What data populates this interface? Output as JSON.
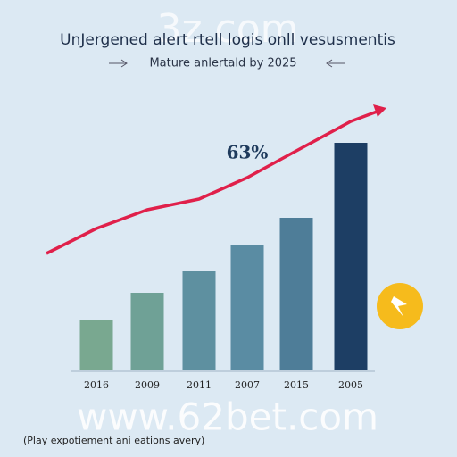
{
  "chart_data": {
    "type": "bar",
    "title": "UnJergened alert rtell logis onll vesusmentis",
    "subtitle": "Mature anlertald by 2025",
    "annotation": "63%",
    "watermark_top": "3z.com",
    "watermark_bottom": "www.62bet.com",
    "footnote": "(Play expotiement ani eations avery)",
    "categories": [
      "2016",
      "2009",
      "2011",
      "2007",
      "2015",
      "2005"
    ],
    "values": [
      19,
      29,
      37,
      47,
      57,
      85
    ],
    "colors": [
      "#79a890",
      "#6fa196",
      "#5e90a0",
      "#5a8ca3",
      "#4e7d98",
      "#1d3e64"
    ],
    "trend": {
      "color": "#e0204a",
      "values": [
        53,
        60,
        64,
        72,
        82,
        93
      ]
    },
    "ylim": [
      0,
      100
    ]
  }
}
